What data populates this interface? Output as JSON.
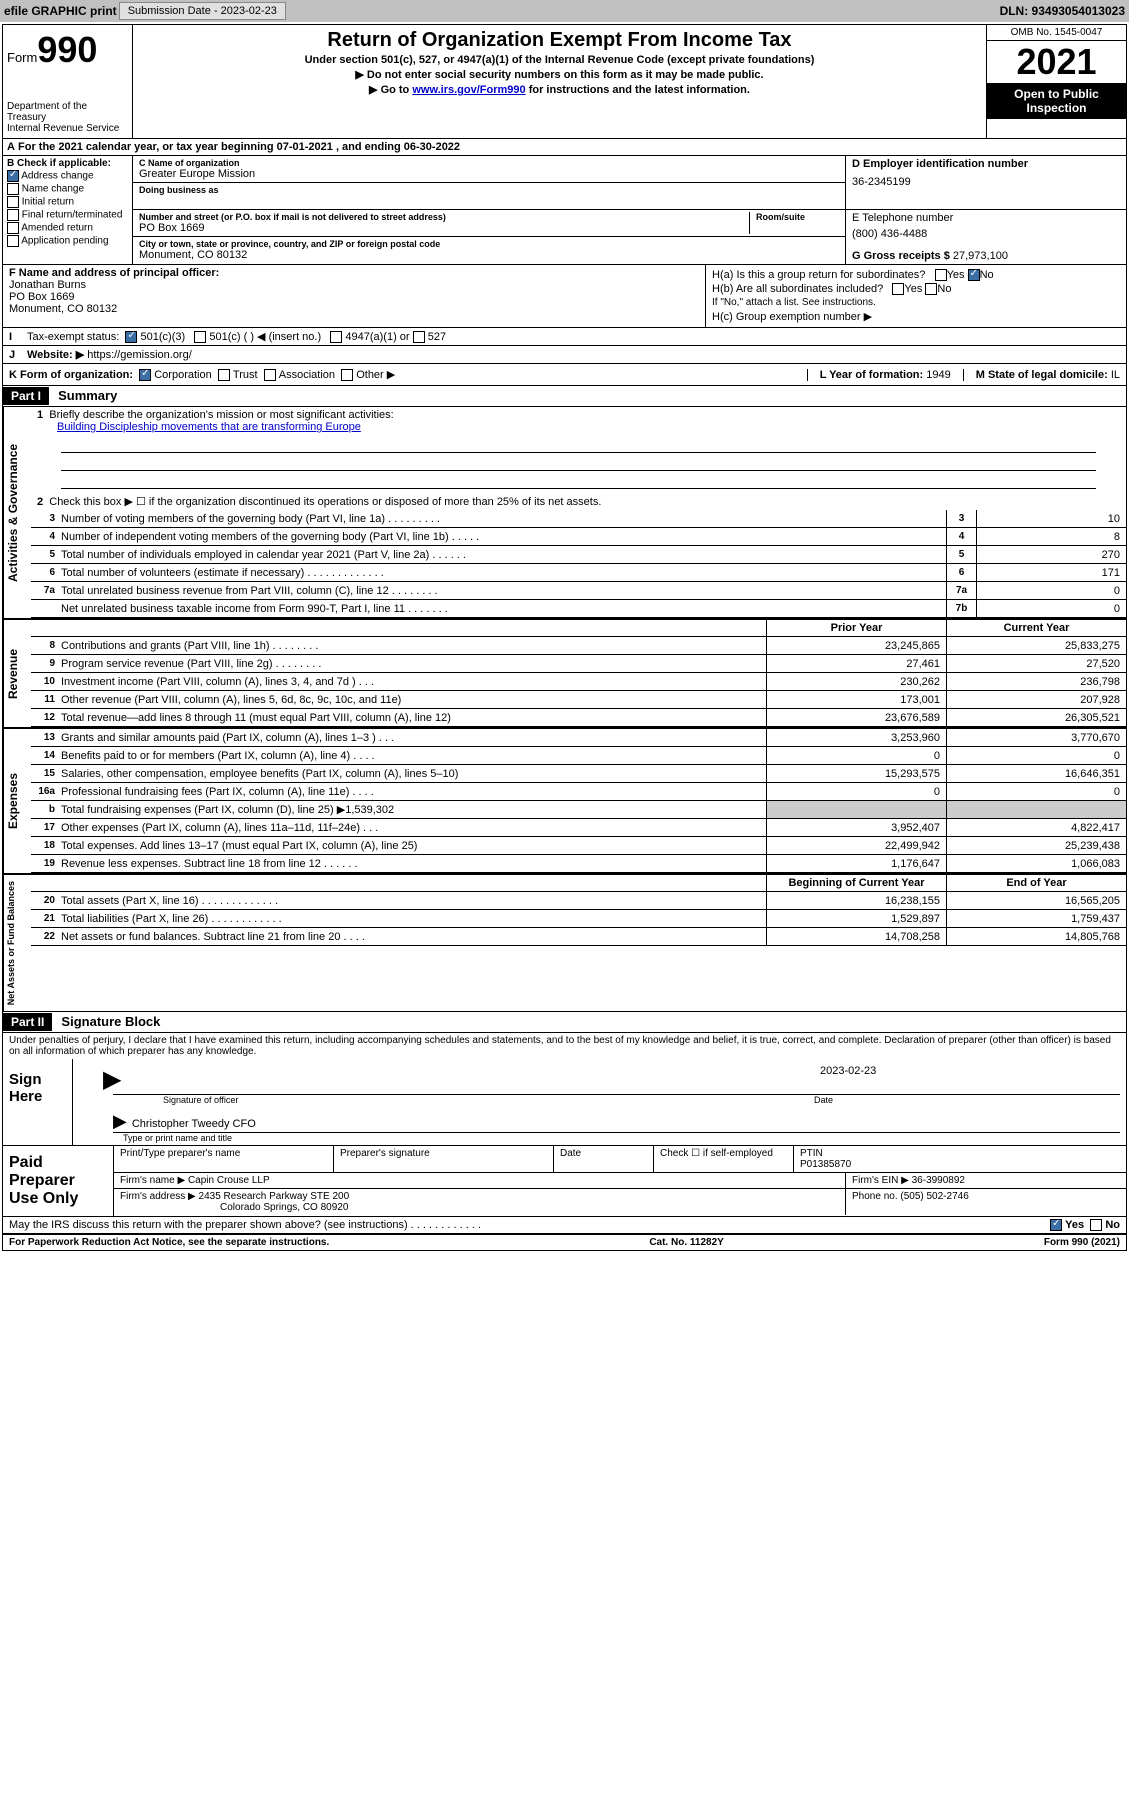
{
  "topbar": {
    "efile": "efile GRAPHIC print",
    "sub_label": "Submission Date - 2023-02-23",
    "dln": "DLN: 93493054013023"
  },
  "header": {
    "form_word": "Form",
    "form_num": "990",
    "dept": "Department of the Treasury",
    "irs": "Internal Revenue Service",
    "title": "Return of Organization Exempt From Income Tax",
    "sub1": "Under section 501(c), 527, or 4947(a)(1) of the Internal Revenue Code (except private foundations)",
    "sub2": "▶ Do not enter social security numbers on this form as it may be made public.",
    "sub3_pre": "▶ Go to ",
    "sub3_link": "www.irs.gov/Form990",
    "sub3_post": " for instructions and the latest information.",
    "omb": "OMB No. 1545-0047",
    "year": "2021",
    "inspect": "Open to Public Inspection"
  },
  "rowA": "For the 2021 calendar year, or tax year beginning 07-01-2021   , and ending 06-30-2022",
  "b": {
    "label": "B Check if applicable:",
    "opts": [
      "Address change",
      "Name change",
      "Initial return",
      "Final return/terminated",
      "Amended return",
      "Application pending"
    ]
  },
  "c": {
    "name_lbl": "C Name of organization",
    "name": "Greater Europe Mission",
    "dba_lbl": "Doing business as",
    "dba": "",
    "addr_lbl": "Number and street (or P.O. box if mail is not delivered to street address)",
    "room_lbl": "Room/suite",
    "addr": "PO Box 1669",
    "city_lbl": "City or town, state or province, country, and ZIP or foreign postal code",
    "city": "Monument, CO  80132"
  },
  "d": {
    "lbl": "D Employer identification number",
    "val": "36-2345199"
  },
  "e": {
    "lbl": "E Telephone number",
    "val": "(800) 436-4488"
  },
  "g": {
    "lbl": "G Gross receipts $ ",
    "val": "27,973,100"
  },
  "f": {
    "lbl": "F  Name and address of principal officer:",
    "name": "Jonathan Burns",
    "addr1": "PO Box 1669",
    "addr2": "Monument, CO  80132"
  },
  "h": {
    "a": "H(a)  Is this a group return for subordinates?",
    "b": "H(b)  Are all subordinates included?",
    "b_note": "If \"No,\" attach a list. See instructions.",
    "c": "H(c)  Group exemption number ▶"
  },
  "i": {
    "lbl": "Tax-exempt status:",
    "o1": "501(c)(3)",
    "o2": "501(c) (  ) ◀ (insert no.)",
    "o3": "4947(a)(1) or",
    "o4": "527"
  },
  "j": {
    "lbl": "Website: ▶",
    "val": "https://gemission.org/"
  },
  "k": {
    "lbl": "K Form of organization:",
    "o1": "Corporation",
    "o2": "Trust",
    "o3": "Association",
    "o4": "Other ▶"
  },
  "l": {
    "lbl": "L Year of formation: ",
    "val": "1949"
  },
  "m": {
    "lbl": "M State of legal domicile: ",
    "val": "IL"
  },
  "part1": {
    "hdr": "Part I",
    "title": "Summary",
    "l1": "Briefly describe the organization's mission or most significant activities:",
    "mission": "Building Discipleship movements that are transforming Europe",
    "l2": "Check this box ▶ ☐  if the organization discontinued its operations or disposed of more than 25% of its net assets.",
    "lines_gov": [
      {
        "n": "3",
        "d": "Number of voting members of the governing body (Part VI, line 1a)   .    .    .    .    .    .    .    .    .",
        "b": "3",
        "v": "10"
      },
      {
        "n": "4",
        "d": "Number of independent voting members of the governing body (Part VI, line 1b)    .    .    .    .    .",
        "b": "4",
        "v": "8"
      },
      {
        "n": "5",
        "d": "Total number of individuals employed in calendar year 2021 (Part V, line 2a)     .    .    .    .    .    .",
        "b": "5",
        "v": "270"
      },
      {
        "n": "6",
        "d": "Total number of volunteers (estimate if necessary)    .    .    .    .    .    .    .    .    .    .    .    .    .",
        "b": "6",
        "v": "171"
      },
      {
        "n": "7a",
        "d": "Total unrelated business revenue from Part VIII, column (C), line 12   .    .    .    .    .    .    .    .",
        "b": "7a",
        "v": "0"
      },
      {
        "n": "",
        "d": "Net unrelated business taxable income from Form 990-T, Part I, line 11    .    .    .    .    .    .    .",
        "b": "7b",
        "v": "0"
      }
    ],
    "hdr_prior": "Prior Year",
    "hdr_current": "Current Year",
    "lines_rev": [
      {
        "n": "8",
        "d": "Contributions and grants (Part VIII, line 1h)    .    .    .    .    .    .    .    .",
        "p": "23,245,865",
        "c": "25,833,275"
      },
      {
        "n": "9",
        "d": "Program service revenue (Part VIII, line 2g)    .    .    .    .    .    .    .    .",
        "p": "27,461",
        "c": "27,520"
      },
      {
        "n": "10",
        "d": "Investment income (Part VIII, column (A), lines 3, 4, and 7d )    .    .    .",
        "p": "230,262",
        "c": "236,798"
      },
      {
        "n": "11",
        "d": "Other revenue (Part VIII, column (A), lines 5, 6d, 8c, 9c, 10c, and 11e)",
        "p": "173,001",
        "c": "207,928"
      },
      {
        "n": "12",
        "d": "Total revenue—add lines 8 through 11 (must equal Part VIII, column (A), line 12)",
        "p": "23,676,589",
        "c": "26,305,521"
      }
    ],
    "lines_exp": [
      {
        "n": "13",
        "d": "Grants and similar amounts paid (Part IX, column (A), lines 1–3 )    .    .    .",
        "p": "3,253,960",
        "c": "3,770,670"
      },
      {
        "n": "14",
        "d": "Benefits paid to or for members (Part IX, column (A), line 4)    .    .    .    .",
        "p": "0",
        "c": "0"
      },
      {
        "n": "15",
        "d": "Salaries, other compensation, employee benefits (Part IX, column (A), lines 5–10)",
        "p": "15,293,575",
        "c": "16,646,351"
      },
      {
        "n": "16a",
        "d": "Professional fundraising fees (Part IX, column (A), line 11e)    .    .    .    .",
        "p": "0",
        "c": "0"
      },
      {
        "n": "b",
        "d": "Total fundraising expenses (Part IX, column (D), line 25) ▶1,539,302",
        "p": "shade",
        "c": "shade"
      },
      {
        "n": "17",
        "d": "Other expenses (Part IX, column (A), lines 11a–11d, 11f–24e)    .    .    .",
        "p": "3,952,407",
        "c": "4,822,417"
      },
      {
        "n": "18",
        "d": "Total expenses. Add lines 13–17 (must equal Part IX, column (A), line 25)",
        "p": "22,499,942",
        "c": "25,239,438"
      },
      {
        "n": "19",
        "d": "Revenue less expenses. Subtract line 18 from line 12   .    .    .    .    .    .",
        "p": "1,176,647",
        "c": "1,066,083"
      }
    ],
    "hdr_beg": "Beginning of Current Year",
    "hdr_end": "End of Year",
    "lines_net": [
      {
        "n": "20",
        "d": "Total assets (Part X, line 16)   .    .    .    .    .    .    .    .    .    .    .    .    .",
        "p": "16,238,155",
        "c": "16,565,205"
      },
      {
        "n": "21",
        "d": "Total liabilities (Part X, line 26)   .    .    .    .    .    .    .    .    .    .    .    .",
        "p": "1,529,897",
        "c": "1,759,437"
      },
      {
        "n": "22",
        "d": "Net assets or fund balances. Subtract line 21 from line 20   .    .    .    .",
        "p": "14,708,258",
        "c": "14,805,768"
      }
    ],
    "side_gov": "Activities & Governance",
    "side_rev": "Revenue",
    "side_exp": "Expenses",
    "side_net": "Net Assets or Fund Balances"
  },
  "part2": {
    "hdr": "Part II",
    "title": "Signature Block",
    "decl": "Under penalties of perjury, I declare that I have examined this return, including accompanying schedules and statements, and to the best of my knowledge and belief, it is true, correct, and complete. Declaration of preparer (other than officer) is based on all information of which preparer has any knowledge.",
    "sign_here": "Sign Here",
    "sig_officer": "Signature of officer",
    "date_lbl": "Date",
    "date": "2023-02-23",
    "name_title": "Christopher Tweedy CFO",
    "type_lbl": "Type or print name and title",
    "paid": "Paid Preparer Use Only",
    "pt_lbl": "Print/Type preparer's name",
    "ps_lbl": "Preparer's signature",
    "d_lbl": "Date",
    "chk_lbl": "Check ☐ if self-employed",
    "ptin_lbl": "PTIN",
    "ptin": "P01385870",
    "firm_name_lbl": "Firm's name    ▶ ",
    "firm_name": "Capin Crouse LLP",
    "firm_ein_lbl": "Firm's EIN ▶ ",
    "firm_ein": "36-3990892",
    "firm_addr_lbl": "Firm's address ▶ ",
    "firm_addr1": "2435 Research Parkway STE 200",
    "firm_addr2": "Colorado Springs, CO  80920",
    "phone_lbl": "Phone no. ",
    "phone": "(505) 502-2746",
    "discuss": "May the IRS discuss this return with the preparer shown above? (see instructions)    .    .    .    .    .    .    .    .    .    .    .    .",
    "yes": "Yes",
    "no": "No"
  },
  "footer": {
    "l": "For Paperwork Reduction Act Notice, see the separate instructions.",
    "c": "Cat. No. 11282Y",
    "r": "Form 990 (2021)"
  },
  "colors": {
    "link": "#0000cc",
    "checked": "#3a6ea5"
  }
}
